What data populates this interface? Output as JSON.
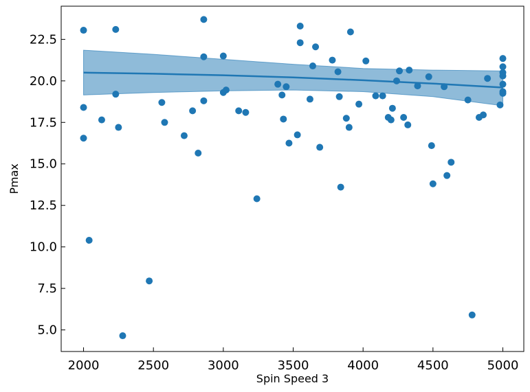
{
  "chart_data": {
    "type": "scatter",
    "title": "",
    "xlabel": "Spin Speed 3",
    "ylabel": "Pmax",
    "xlim": [
      1840,
      5150
    ],
    "ylim": [
      3.7,
      24.5
    ],
    "xticks": [
      2000,
      2500,
      3000,
      3500,
      4000,
      4500,
      5000
    ],
    "xtick_labels": [
      "2000",
      "2500",
      "3000",
      "3500",
      "4000",
      "4500",
      "5000"
    ],
    "yticks": [
      5.0,
      7.5,
      10.0,
      12.5,
      15.0,
      17.5,
      20.0,
      22.5
    ],
    "ytick_labels": [
      "5.0",
      "7.5",
      "10.0",
      "12.5",
      "15.0",
      "17.5",
      "20.0",
      "22.5"
    ],
    "grid": false,
    "colors": {
      "points": "#1f77b4",
      "line": "#1f77b4",
      "band": "#1f77b4"
    },
    "points": [
      [
        2000,
        23.05
      ],
      [
        2000,
        18.4
      ],
      [
        2000,
        16.55
      ],
      [
        2040,
        10.4
      ],
      [
        2130,
        17.65
      ],
      [
        2230,
        23.1
      ],
      [
        2230,
        19.2
      ],
      [
        2250,
        17.2
      ],
      [
        2280,
        4.65
      ],
      [
        2470,
        7.95
      ],
      [
        2560,
        18.7
      ],
      [
        2580,
        17.5
      ],
      [
        2720,
        16.7
      ],
      [
        2780,
        18.2
      ],
      [
        2820,
        15.65
      ],
      [
        2860,
        23.7
      ],
      [
        2860,
        21.45
      ],
      [
        2860,
        18.8
      ],
      [
        3000,
        21.5
      ],
      [
        3000,
        19.3
      ],
      [
        3020,
        19.45
      ],
      [
        3110,
        18.2
      ],
      [
        3160,
        18.1
      ],
      [
        3240,
        12.9
      ],
      [
        3390,
        19.8
      ],
      [
        3420,
        19.15
      ],
      [
        3430,
        17.7
      ],
      [
        3450,
        19.65
      ],
      [
        3470,
        16.25
      ],
      [
        3530,
        16.75
      ],
      [
        3550,
        23.3
      ],
      [
        3550,
        22.3
      ],
      [
        3620,
        18.9
      ],
      [
        3640,
        20.9
      ],
      [
        3660,
        22.05
      ],
      [
        3690,
        16.0
      ],
      [
        3780,
        21.25
      ],
      [
        3820,
        20.55
      ],
      [
        3830,
        19.05
      ],
      [
        3840,
        13.6
      ],
      [
        3880,
        17.75
      ],
      [
        3900,
        17.2
      ],
      [
        3910,
        22.95
      ],
      [
        3970,
        18.6
      ],
      [
        4020,
        21.2
      ],
      [
        4090,
        19.1
      ],
      [
        4140,
        19.1
      ],
      [
        4180,
        17.8
      ],
      [
        4200,
        17.65
      ],
      [
        4210,
        18.35
      ],
      [
        4240,
        20.0
      ],
      [
        4260,
        20.6
      ],
      [
        4290,
        17.8
      ],
      [
        4320,
        17.35
      ],
      [
        4330,
        20.65
      ],
      [
        4390,
        19.7
      ],
      [
        4470,
        20.25
      ],
      [
        4490,
        16.1
      ],
      [
        4500,
        13.8
      ],
      [
        4580,
        19.65
      ],
      [
        4600,
        14.3
      ],
      [
        4630,
        15.1
      ],
      [
        4750,
        18.85
      ],
      [
        4780,
        5.9
      ],
      [
        4830,
        17.8
      ],
      [
        4860,
        17.95
      ],
      [
        4890,
        20.15
      ],
      [
        4980,
        18.55
      ],
      [
        5000,
        21.35
      ],
      [
        5000,
        20.85
      ],
      [
        5000,
        20.5
      ],
      [
        5000,
        20.3
      ],
      [
        5000,
        19.8
      ],
      [
        5000,
        19.35
      ],
      [
        5000,
        19.25
      ]
    ],
    "fit_line": {
      "x": [
        2000,
        2500,
        3000,
        3500,
        4000,
        4500,
        5000
      ],
      "y": [
        20.5,
        20.43,
        20.34,
        20.21,
        20.04,
        19.84,
        19.6
      ]
    },
    "confidence_band": {
      "x": [
        2000,
        2500,
        3000,
        3500,
        4000,
        4500,
        5000
      ],
      "lower": [
        19.15,
        19.3,
        19.4,
        19.45,
        19.35,
        19.05,
        18.5
      ],
      "upper": [
        21.85,
        21.6,
        21.3,
        21.0,
        20.75,
        20.65,
        20.6
      ]
    }
  }
}
